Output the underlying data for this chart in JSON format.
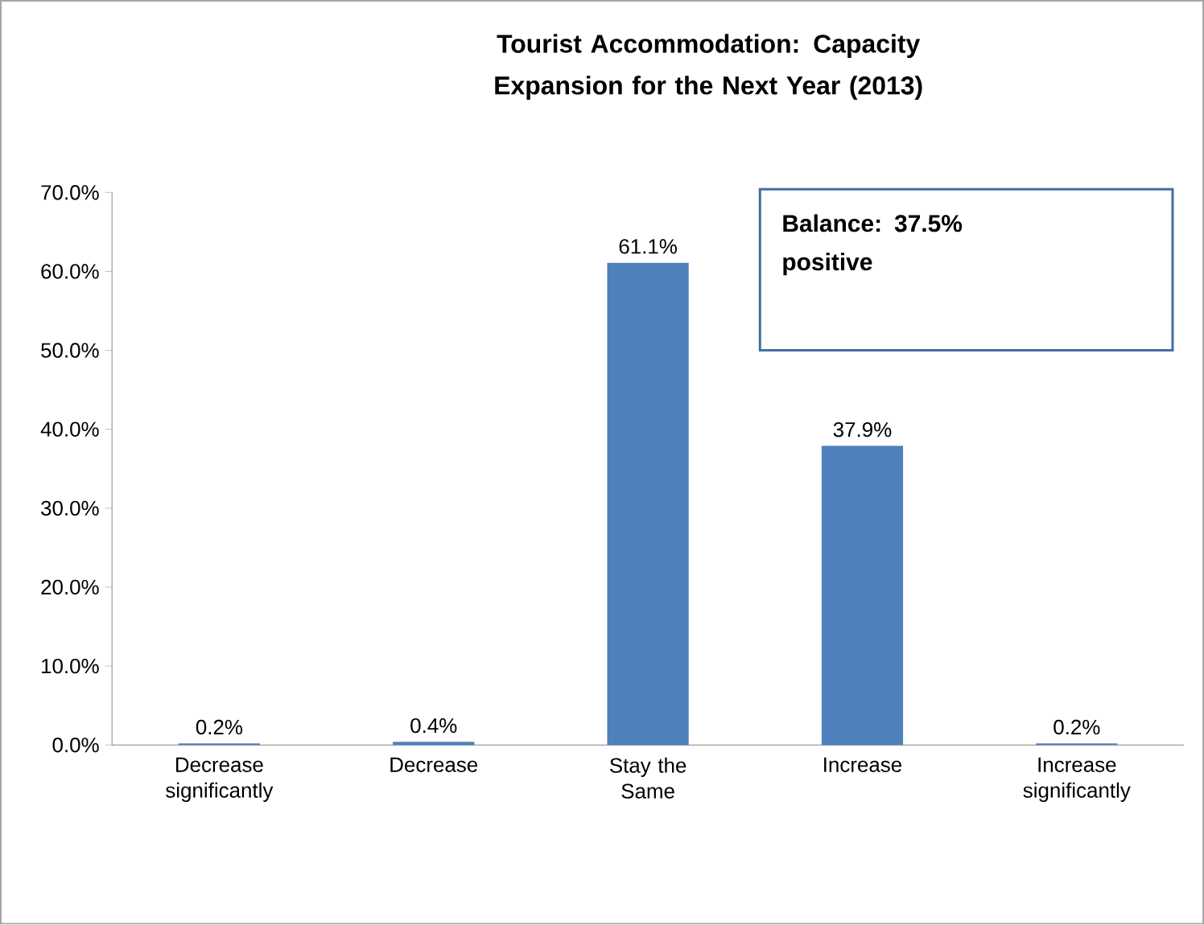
{
  "chart_data": {
    "type": "bar",
    "title": "Tourist Accommodation: Capacity Expansion for the Next Year (2013)",
    "categories": [
      "Decrease significantly",
      "Decrease",
      "Stay the Same",
      "Increase",
      "Increase significantly"
    ],
    "values": [
      0.2,
      0.4,
      61.1,
      37.9,
      0.2
    ],
    "value_labels": [
      "0.2%",
      "0.4%",
      "61.1%",
      "37.9%",
      "0.2%"
    ],
    "color": "#4f81bd",
    "ylim": [
      0,
      70
    ],
    "yticks": [
      {
        "value": 0,
        "label": "0.0%"
      },
      {
        "value": 10,
        "label": "10.0%"
      },
      {
        "value": 20,
        "label": "20.0%"
      },
      {
        "value": 30,
        "label": "30.0%"
      },
      {
        "value": 40,
        "label": "40.0%"
      },
      {
        "value": 50,
        "label": "50.0%"
      },
      {
        "value": 60,
        "label": "60.0%"
      },
      {
        "value": 70,
        "label": "70.0%"
      }
    ],
    "grid": false,
    "annotations": [
      "Balance:  37.5% positive"
    ]
  }
}
